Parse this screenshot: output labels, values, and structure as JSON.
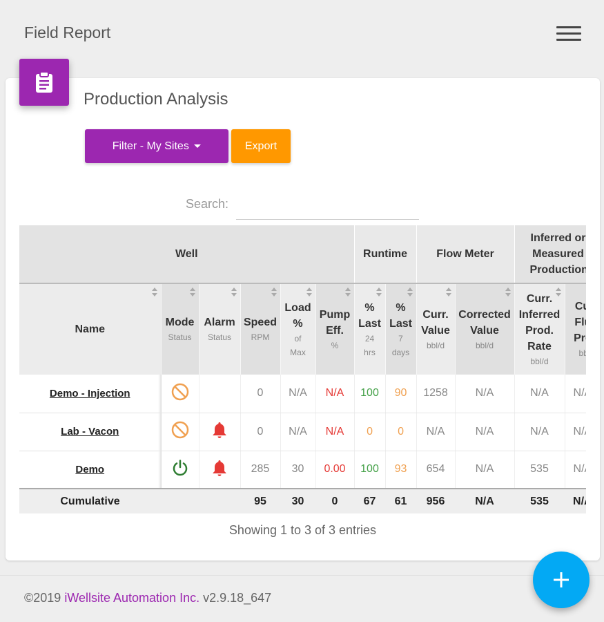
{
  "header": {
    "title": "Field Report",
    "menu_icon": "hamburger-menu-icon"
  },
  "card": {
    "icon": "clipboard-icon",
    "title": "Production Analysis",
    "filter_label": "Filter - My Sites",
    "export_label": "Export",
    "search_label": "Search:",
    "search_value": ""
  },
  "colors": {
    "purple": "#9c27b0",
    "orange": "#ff9800",
    "blue": "#03a9f4",
    "red": "#e53935",
    "green": "#43a047"
  },
  "table": {
    "groups": {
      "well": "Well",
      "runtime": "Runtime",
      "flow_meter": "Flow Meter",
      "inferred": "Inferred or Measured Production"
    },
    "columns": {
      "name": "Name",
      "mode": {
        "label": "Mode",
        "sub": "Status"
      },
      "alarm": {
        "label": "Alarm",
        "sub": "Status"
      },
      "speed": {
        "label": "Speed",
        "sub": "RPM"
      },
      "load": {
        "label": "Load %",
        "sub": "of Max"
      },
      "pump": {
        "label": "Pump Eff.",
        "sub": "%"
      },
      "last24": {
        "label": "% Last",
        "sub": "24 hrs"
      },
      "last7": {
        "label": "% Last",
        "sub": "7 days"
      },
      "curr_value": {
        "label": "Curr. Value",
        "sub": "bbl/d"
      },
      "corrected": {
        "label": "Corrected Value",
        "sub": "bbl/d"
      },
      "inferred_rate": {
        "label": "Curr. Inferred Prod. Rate",
        "sub": "bbl/d"
      },
      "curr_fluid": {
        "label": "Curr. Fluid Prod.",
        "sub": "bbl/d"
      }
    },
    "rows": [
      {
        "name": "Demo - Injection",
        "mode_icon": "prohibited-icon",
        "alarm_icon": "",
        "speed": "0",
        "load": "N/A",
        "pump": "N/A",
        "last24": "100",
        "last7": "90",
        "curr_value": "1258",
        "corrected": "N/A",
        "inferred_rate": "N/A",
        "curr_fluid": "N/A"
      },
      {
        "name": "Lab - Vacon",
        "mode_icon": "prohibited-icon",
        "alarm_icon": "bell-icon",
        "speed": "0",
        "load": "N/A",
        "pump": "N/A",
        "last24": "0",
        "last7": "0",
        "curr_value": "N/A",
        "corrected": "N/A",
        "inferred_rate": "N/A",
        "curr_fluid": "N/A"
      },
      {
        "name": "Demo",
        "mode_icon": "power-icon",
        "alarm_icon": "bell-icon",
        "speed": "285",
        "load": "30",
        "pump": "0.00",
        "last24": "100",
        "last7": "93",
        "curr_value": "654",
        "corrected": "N/A",
        "inferred_rate": "535",
        "curr_fluid": "N/A"
      }
    ],
    "cumulative": {
      "label": "Cumulative",
      "speed": "95",
      "load": "30",
      "pump": "0",
      "last24": "67",
      "last7": "61",
      "curr_value": "956",
      "corrected": "N/A",
      "inferred_rate": "535",
      "curr_fluid": "N/A"
    }
  },
  "showing": "Showing 1 to 3 of 3 entries",
  "footer": {
    "copyright": "©2019",
    "company": "iWellsite Automation Inc.",
    "version": "v2.9.18_647"
  },
  "fab": {
    "icon": "plus-icon"
  }
}
